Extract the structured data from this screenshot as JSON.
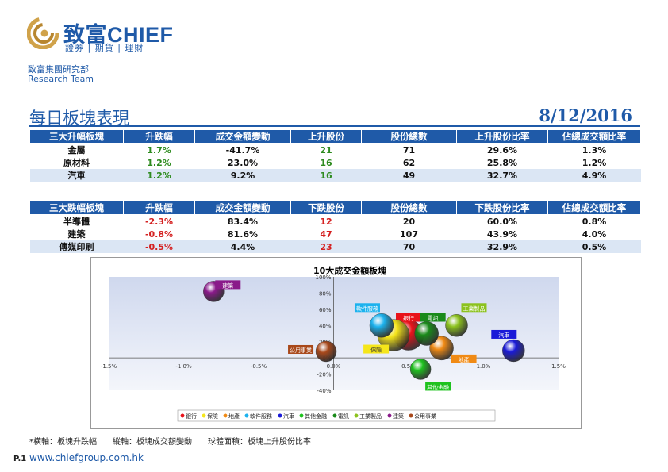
{
  "header": {
    "brand": "致富CHIEF",
    "tagline": "證券 | 期貨 | 理財",
    "department": "致富集團研究部",
    "team": "Research Team",
    "title": "每日板塊表現",
    "date": "8/12/2016"
  },
  "gainers": {
    "columns": [
      "三大升幅板塊",
      "升跌幅",
      "成交金額變動",
      "上升股份",
      "股份總數",
      "上升股份比率",
      "佔總成交額比率"
    ],
    "rows": [
      [
        "金屬",
        "1.7%",
        "-41.7%",
        "21",
        "71",
        "29.6%",
        "1.3%"
      ],
      [
        "原材料",
        "1.2%",
        "23.0%",
        "16",
        "62",
        "25.8%",
        "1.2%"
      ],
      [
        "汽車",
        "1.2%",
        "9.2%",
        "16",
        "49",
        "32.7%",
        "4.9%"
      ]
    ]
  },
  "losers": {
    "columns": [
      "三大跌幅板塊",
      "升跌幅",
      "成交金額變動",
      "下跌股份",
      "股份總數",
      "下跌股份比率",
      "佔總成交額比率"
    ],
    "rows": [
      [
        "半導體",
        "-2.3%",
        "83.4%",
        "12",
        "20",
        "60.0%",
        "0.8%"
      ],
      [
        "建築",
        "-0.8%",
        "81.6%",
        "47",
        "107",
        "43.9%",
        "4.0%"
      ],
      [
        "傳媒印刷",
        "-0.5%",
        "4.4%",
        "23",
        "70",
        "32.9%",
        "0.5%"
      ]
    ]
  },
  "chart_data": {
    "type": "scatter",
    "title": "10大成交金額板塊",
    "xlim": [
      -1.5,
      1.5
    ],
    "ylim": [
      -40,
      100
    ],
    "x_ticks": [
      "-1.5%",
      "-1.0%",
      "-0.5%",
      "0.0%",
      "0.5%",
      "1.0%",
      "1.5%"
    ],
    "y_ticks": [
      "-40%",
      "-20%",
      "0%",
      "20%",
      "40%",
      "60%",
      "80%",
      "100%"
    ],
    "series": [
      {
        "name": "銀行",
        "x": 0.5,
        "y": 28,
        "size": 38,
        "color": "#e8121a"
      },
      {
        "name": "保險",
        "x": 0.4,
        "y": 28,
        "size": 40,
        "color": "#f5e61a"
      },
      {
        "name": "地產",
        "x": 0.72,
        "y": 12,
        "size": 30,
        "color": "#f08a14"
      },
      {
        "name": "軟件服務",
        "x": 0.32,
        "y": 40,
        "size": 30,
        "color": "#1cb2ee"
      },
      {
        "name": "汽車",
        "x": 1.2,
        "y": 9,
        "size": 28,
        "color": "#1a1ad8"
      },
      {
        "name": "其他金融",
        "x": 0.58,
        "y": -14,
        "size": 26,
        "color": "#1ec21e"
      },
      {
        "name": "電訊",
        "x": 0.62,
        "y": 30,
        "size": 30,
        "color": "#1a8a1a"
      },
      {
        "name": "工業製品",
        "x": 0.82,
        "y": 40,
        "size": 28,
        "color": "#8cc21e"
      },
      {
        "name": "建築",
        "x": -0.8,
        "y": 82,
        "size": 26,
        "color": "#8a1a8a"
      },
      {
        "name": "公用事業",
        "x": -0.05,
        "y": 8,
        "size": 26,
        "color": "#a8481a"
      }
    ]
  },
  "footnote": "*橫軸：板塊升跌幅　　縱軸：板塊成交額變動　　球體面積：板塊上升股份比率",
  "page_number": "P.1",
  "website": "www.chiefgroup.com.hk"
}
